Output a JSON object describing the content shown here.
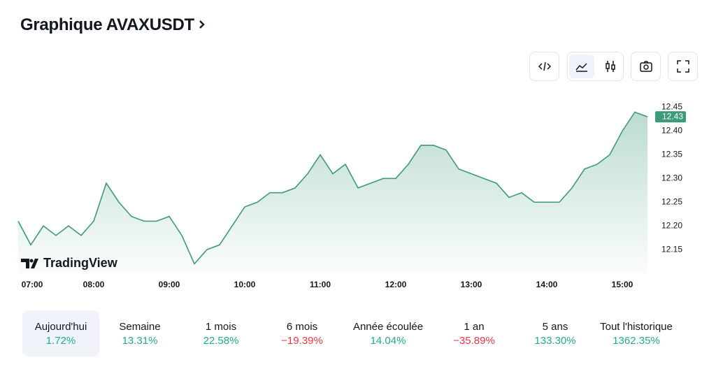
{
  "header": {
    "title": "Graphique AVAXUSDT"
  },
  "chart_data": {
    "type": "area",
    "color": "#3d9a7a",
    "x": [
      "07:00",
      "07:10",
      "07:20",
      "07:30",
      "07:40",
      "07:50",
      "08:00",
      "08:10",
      "08:20",
      "08:30",
      "08:40",
      "08:50",
      "09:00",
      "09:10",
      "09:20",
      "09:30",
      "09:40",
      "09:50",
      "10:00",
      "10:10",
      "10:20",
      "10:30",
      "10:40",
      "10:50",
      "11:00",
      "11:10",
      "11:20",
      "11:30",
      "11:40",
      "11:50",
      "12:00",
      "12:10",
      "12:20",
      "12:30",
      "12:40",
      "12:50",
      "13:00",
      "13:10",
      "13:20",
      "13:30",
      "13:40",
      "13:50",
      "14:00",
      "14:10",
      "14:20",
      "14:30",
      "14:40",
      "14:50",
      "15:00",
      "15:10",
      "15:20"
    ],
    "values": [
      12.21,
      12.16,
      12.2,
      12.18,
      12.2,
      12.18,
      12.21,
      12.29,
      12.25,
      12.22,
      12.21,
      12.21,
      12.22,
      12.18,
      12.12,
      12.15,
      12.16,
      12.2,
      12.24,
      12.25,
      12.27,
      12.27,
      12.28,
      12.31,
      12.35,
      12.31,
      12.33,
      12.28,
      12.29,
      12.3,
      12.3,
      12.33,
      12.37,
      12.37,
      12.36,
      12.32,
      12.31,
      12.3,
      12.29,
      12.26,
      12.27,
      12.25,
      12.25,
      12.25,
      12.28,
      12.32,
      12.33,
      12.35,
      12.4,
      12.44,
      12.43
    ],
    "last_price": {
      "value": 12.43,
      "label": "12.43"
    },
    "ylim": [
      12.1,
      12.47
    ],
    "yticks": [
      12.15,
      {
        "value": 12.2,
        "label": "12.20"
      },
      12.25,
      {
        "value": 12.3,
        "label": "12.30"
      },
      12.35,
      {
        "value": 12.4,
        "label": "12.40"
      },
      12.45
    ],
    "xticks": [
      "07:00",
      "08:00",
      "09:00",
      "10:00",
      "11:00",
      "12:00",
      "13:00",
      "14:00",
      "15:00"
    ],
    "watermark": "TradingView"
  },
  "periods": [
    {
      "label": "Aujourd'hui",
      "change": "1.72%",
      "color": "#22ab94",
      "selected": true
    },
    {
      "label": "Semaine",
      "change": "13.31%",
      "color": "#22ab94"
    },
    {
      "label": "1 mois",
      "change": "22.58%",
      "color": "#22ab94"
    },
    {
      "label": "6 mois",
      "change": "−19.39%",
      "color": "#f23645"
    },
    {
      "label": "Année écoulée",
      "change": "14.04%",
      "color": "#22ab94"
    },
    {
      "label": "1 an",
      "change": "−35.89%",
      "color": "#f23645"
    },
    {
      "label": "5 ans",
      "change": "133.30%",
      "color": "#22ab94"
    },
    {
      "label": "Tout l'historique",
      "change": "1362.35%",
      "color": "#22ab94"
    }
  ]
}
